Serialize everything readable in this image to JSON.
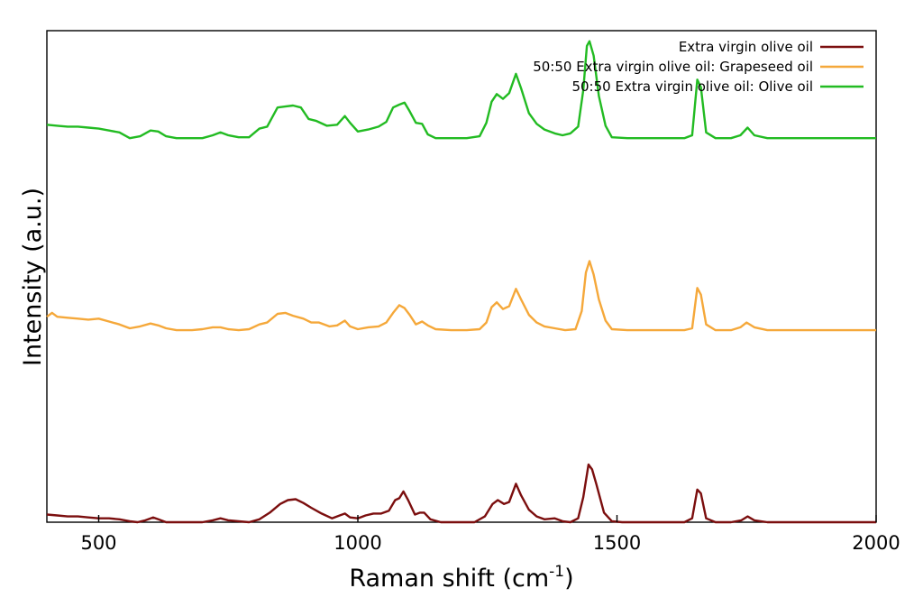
{
  "chart_data": {
    "type": "line",
    "title": "",
    "xlabel": "Raman shift (cm",
    "xlabel_sup": "-1",
    "xlabel_end": ")",
    "ylabel": "Intensity (a.u.)",
    "xlim": [
      400,
      2000
    ],
    "x_ticks": [
      500,
      1000,
      1500,
      2000
    ],
    "x_tick_labels": [
      "500",
      "1000",
      "1500",
      "2000"
    ],
    "y_ticks_shown": false,
    "y_scale": "arbitrary units, traces vertically offset",
    "grid": false,
    "legend_position": "top-right",
    "series": [
      {
        "name": "Extra virgin olive oil",
        "color": "#7b0e0e",
        "baseline": 0.0,
        "points": [
          [
            400,
            0.04
          ],
          [
            420,
            0.035
          ],
          [
            440,
            0.03
          ],
          [
            460,
            0.03
          ],
          [
            480,
            0.025
          ],
          [
            500,
            0.02
          ],
          [
            520,
            0.02
          ],
          [
            540,
            0.015
          ],
          [
            560,
            0.005
          ],
          [
            575,
            0.0
          ],
          [
            590,
            0.01
          ],
          [
            605,
            0.025
          ],
          [
            615,
            0.015
          ],
          [
            630,
            0.0
          ],
          [
            650,
            0.0
          ],
          [
            680,
            0.0
          ],
          [
            700,
            0.0
          ],
          [
            720,
            0.01
          ],
          [
            735,
            0.02
          ],
          [
            750,
            0.01
          ],
          [
            770,
            0.005
          ],
          [
            790,
            0.0
          ],
          [
            810,
            0.015
          ],
          [
            830,
            0.05
          ],
          [
            850,
            0.095
          ],
          [
            865,
            0.115
          ],
          [
            880,
            0.12
          ],
          [
            895,
            0.1
          ],
          [
            910,
            0.075
          ],
          [
            930,
            0.045
          ],
          [
            950,
            0.02
          ],
          [
            965,
            0.035
          ],
          [
            975,
            0.045
          ],
          [
            985,
            0.025
          ],
          [
            1000,
            0.02
          ],
          [
            1015,
            0.035
          ],
          [
            1030,
            0.045
          ],
          [
            1045,
            0.045
          ],
          [
            1060,
            0.06
          ],
          [
            1072,
            0.115
          ],
          [
            1080,
            0.125
          ],
          [
            1088,
            0.16
          ],
          [
            1097,
            0.115
          ],
          [
            1110,
            0.04
          ],
          [
            1120,
            0.05
          ],
          [
            1128,
            0.05
          ],
          [
            1140,
            0.015
          ],
          [
            1160,
            0.0
          ],
          [
            1200,
            0.0
          ],
          [
            1225,
            0.0
          ],
          [
            1245,
            0.03
          ],
          [
            1260,
            0.095
          ],
          [
            1270,
            0.115
          ],
          [
            1282,
            0.095
          ],
          [
            1292,
            0.105
          ],
          [
            1305,
            0.2
          ],
          [
            1315,
            0.14
          ],
          [
            1330,
            0.065
          ],
          [
            1345,
            0.03
          ],
          [
            1360,
            0.015
          ],
          [
            1380,
            0.02
          ],
          [
            1395,
            0.005
          ],
          [
            1410,
            0.0
          ],
          [
            1425,
            0.02
          ],
          [
            1435,
            0.13
          ],
          [
            1445,
            0.3
          ],
          [
            1452,
            0.275
          ],
          [
            1460,
            0.2
          ],
          [
            1475,
            0.05
          ],
          [
            1490,
            0.005
          ],
          [
            1510,
            0.0
          ],
          [
            1550,
            0.0
          ],
          [
            1600,
            0.0
          ],
          [
            1630,
            0.0
          ],
          [
            1645,
            0.02
          ],
          [
            1655,
            0.17
          ],
          [
            1662,
            0.15
          ],
          [
            1672,
            0.02
          ],
          [
            1690,
            0.0
          ],
          [
            1720,
            0.0
          ],
          [
            1740,
            0.01
          ],
          [
            1752,
            0.03
          ],
          [
            1765,
            0.01
          ],
          [
            1790,
            0.0
          ],
          [
            1850,
            0.0
          ],
          [
            1900,
            0.0
          ],
          [
            1950,
            0.0
          ],
          [
            2000,
            0.0
          ]
        ]
      },
      {
        "name": "50:50 Extra virgin olive oil: Grapeseed oil",
        "color": "#f5a83a",
        "baseline": 1.0,
        "points": [
          [
            400,
            1.07
          ],
          [
            410,
            1.09
          ],
          [
            420,
            1.07
          ],
          [
            440,
            1.065
          ],
          [
            460,
            1.06
          ],
          [
            480,
            1.055
          ],
          [
            500,
            1.06
          ],
          [
            520,
            1.045
          ],
          [
            540,
            1.03
          ],
          [
            560,
            1.01
          ],
          [
            580,
            1.02
          ],
          [
            600,
            1.035
          ],
          [
            615,
            1.025
          ],
          [
            630,
            1.01
          ],
          [
            650,
            1.0
          ],
          [
            680,
            1.0
          ],
          [
            700,
            1.005
          ],
          [
            720,
            1.015
          ],
          [
            735,
            1.015
          ],
          [
            750,
            1.005
          ],
          [
            770,
            1.0
          ],
          [
            790,
            1.005
          ],
          [
            810,
            1.03
          ],
          [
            825,
            1.04
          ],
          [
            845,
            1.085
          ],
          [
            860,
            1.09
          ],
          [
            875,
            1.075
          ],
          [
            895,
            1.06
          ],
          [
            910,
            1.04
          ],
          [
            925,
            1.04
          ],
          [
            945,
            1.02
          ],
          [
            960,
            1.025
          ],
          [
            975,
            1.05
          ],
          [
            985,
            1.02
          ],
          [
            1000,
            1.005
          ],
          [
            1020,
            1.015
          ],
          [
            1040,
            1.02
          ],
          [
            1055,
            1.04
          ],
          [
            1068,
            1.09
          ],
          [
            1080,
            1.13
          ],
          [
            1090,
            1.115
          ],
          [
            1100,
            1.08
          ],
          [
            1112,
            1.03
          ],
          [
            1124,
            1.045
          ],
          [
            1135,
            1.025
          ],
          [
            1150,
            1.005
          ],
          [
            1180,
            1.0
          ],
          [
            1210,
            1.0
          ],
          [
            1235,
            1.005
          ],
          [
            1248,
            1.04
          ],
          [
            1258,
            1.12
          ],
          [
            1268,
            1.145
          ],
          [
            1280,
            1.11
          ],
          [
            1292,
            1.125
          ],
          [
            1305,
            1.215
          ],
          [
            1315,
            1.16
          ],
          [
            1330,
            1.08
          ],
          [
            1345,
            1.04
          ],
          [
            1360,
            1.02
          ],
          [
            1380,
            1.01
          ],
          [
            1400,
            1.0
          ],
          [
            1420,
            1.005
          ],
          [
            1432,
            1.1
          ],
          [
            1440,
            1.3
          ],
          [
            1447,
            1.36
          ],
          [
            1455,
            1.29
          ],
          [
            1465,
            1.16
          ],
          [
            1478,
            1.05
          ],
          [
            1490,
            1.005
          ],
          [
            1520,
            1.0
          ],
          [
            1560,
            1.0
          ],
          [
            1600,
            1.0
          ],
          [
            1630,
            1.0
          ],
          [
            1645,
            1.01
          ],
          [
            1655,
            1.22
          ],
          [
            1662,
            1.185
          ],
          [
            1672,
            1.03
          ],
          [
            1690,
            1.0
          ],
          [
            1720,
            1.0
          ],
          [
            1738,
            1.015
          ],
          [
            1750,
            1.04
          ],
          [
            1765,
            1.015
          ],
          [
            1790,
            1.0
          ],
          [
            1850,
            1.0
          ],
          [
            1900,
            1.0
          ],
          [
            1950,
            1.0
          ],
          [
            2000,
            1.0
          ]
        ]
      },
      {
        "name": "50:50 Extra virgin olive oil: Olive oil",
        "color": "#22bb22",
        "baseline": 2.0,
        "points": [
          [
            400,
            2.07
          ],
          [
            420,
            2.065
          ],
          [
            440,
            2.06
          ],
          [
            460,
            2.06
          ],
          [
            480,
            2.055
          ],
          [
            500,
            2.05
          ],
          [
            520,
            2.04
          ],
          [
            540,
            2.03
          ],
          [
            560,
            2.0
          ],
          [
            580,
            2.01
          ],
          [
            600,
            2.04
          ],
          [
            615,
            2.035
          ],
          [
            630,
            2.01
          ],
          [
            650,
            2.0
          ],
          [
            680,
            2.0
          ],
          [
            700,
            2.0
          ],
          [
            720,
            2.015
          ],
          [
            735,
            2.03
          ],
          [
            750,
            2.015
          ],
          [
            770,
            2.005
          ],
          [
            790,
            2.005
          ],
          [
            810,
            2.05
          ],
          [
            825,
            2.06
          ],
          [
            845,
            2.16
          ],
          [
            860,
            2.165
          ],
          [
            875,
            2.17
          ],
          [
            890,
            2.16
          ],
          [
            905,
            2.1
          ],
          [
            920,
            2.09
          ],
          [
            940,
            2.065
          ],
          [
            960,
            2.07
          ],
          [
            975,
            2.115
          ],
          [
            985,
            2.08
          ],
          [
            1000,
            2.035
          ],
          [
            1020,
            2.045
          ],
          [
            1040,
            2.06
          ],
          [
            1055,
            2.085
          ],
          [
            1068,
            2.16
          ],
          [
            1080,
            2.175
          ],
          [
            1090,
            2.185
          ],
          [
            1100,
            2.14
          ],
          [
            1112,
            2.08
          ],
          [
            1124,
            2.075
          ],
          [
            1135,
            2.02
          ],
          [
            1150,
            2.0
          ],
          [
            1180,
            2.0
          ],
          [
            1210,
            2.0
          ],
          [
            1235,
            2.01
          ],
          [
            1248,
            2.08
          ],
          [
            1258,
            2.19
          ],
          [
            1268,
            2.23
          ],
          [
            1280,
            2.205
          ],
          [
            1292,
            2.235
          ],
          [
            1305,
            2.335
          ],
          [
            1315,
            2.26
          ],
          [
            1330,
            2.13
          ],
          [
            1345,
            2.075
          ],
          [
            1360,
            2.045
          ],
          [
            1380,
            2.025
          ],
          [
            1395,
            2.015
          ],
          [
            1410,
            2.025
          ],
          [
            1425,
            2.06
          ],
          [
            1435,
            2.25
          ],
          [
            1442,
            2.48
          ],
          [
            1447,
            2.505
          ],
          [
            1455,
            2.43
          ],
          [
            1465,
            2.22
          ],
          [
            1478,
            2.065
          ],
          [
            1490,
            2.005
          ],
          [
            1520,
            2.0
          ],
          [
            1560,
            2.0
          ],
          [
            1600,
            2.0
          ],
          [
            1630,
            2.0
          ],
          [
            1645,
            2.015
          ],
          [
            1655,
            2.305
          ],
          [
            1662,
            2.265
          ],
          [
            1672,
            2.03
          ],
          [
            1690,
            2.0
          ],
          [
            1720,
            2.0
          ],
          [
            1738,
            2.015
          ],
          [
            1752,
            2.055
          ],
          [
            1765,
            2.015
          ],
          [
            1790,
            2.0
          ],
          [
            1850,
            2.0
          ],
          [
            1900,
            2.0
          ],
          [
            1950,
            2.0
          ],
          [
            2000,
            2.0
          ]
        ]
      }
    ]
  }
}
